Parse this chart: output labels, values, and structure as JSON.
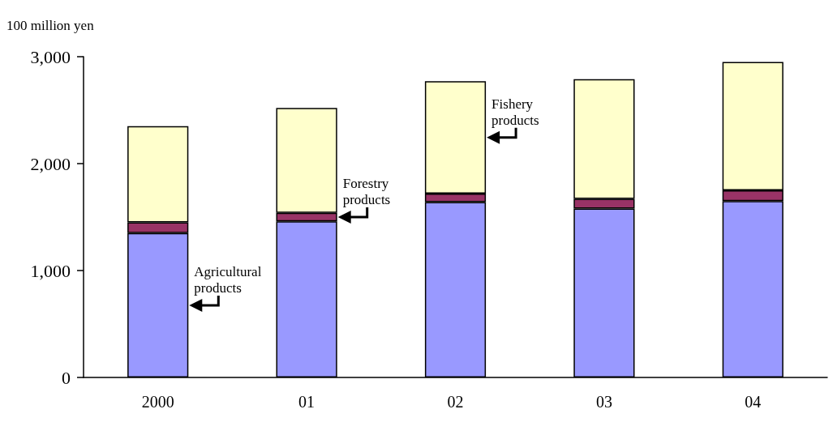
{
  "chart_data": {
    "type": "bar",
    "ylabel": "100 million yen",
    "stacked": true,
    "legend": false,
    "grid": false,
    "categories": [
      "2000",
      "01",
      "02",
      "03",
      "04"
    ],
    "series": [
      {
        "name": "Agricultural products",
        "color": "#9999ff",
        "values": [
          1350,
          1460,
          1640,
          1580,
          1650
        ]
      },
      {
        "name": "Forestry products",
        "color": "#993366",
        "values": [
          100,
          80,
          80,
          90,
          100
        ]
      },
      {
        "name": "Fishery products",
        "color": "#ffffcc",
        "values": [
          900,
          980,
          1050,
          1120,
          1200
        ]
      }
    ],
    "ylim": [
      0,
      3000
    ],
    "yticks": [
      {
        "value": 0,
        "label": "0"
      },
      {
        "value": 1000,
        "label": "1,000"
      },
      {
        "value": 2000,
        "label": "2,000"
      },
      {
        "value": 3000,
        "label": "3,000"
      }
    ]
  }
}
